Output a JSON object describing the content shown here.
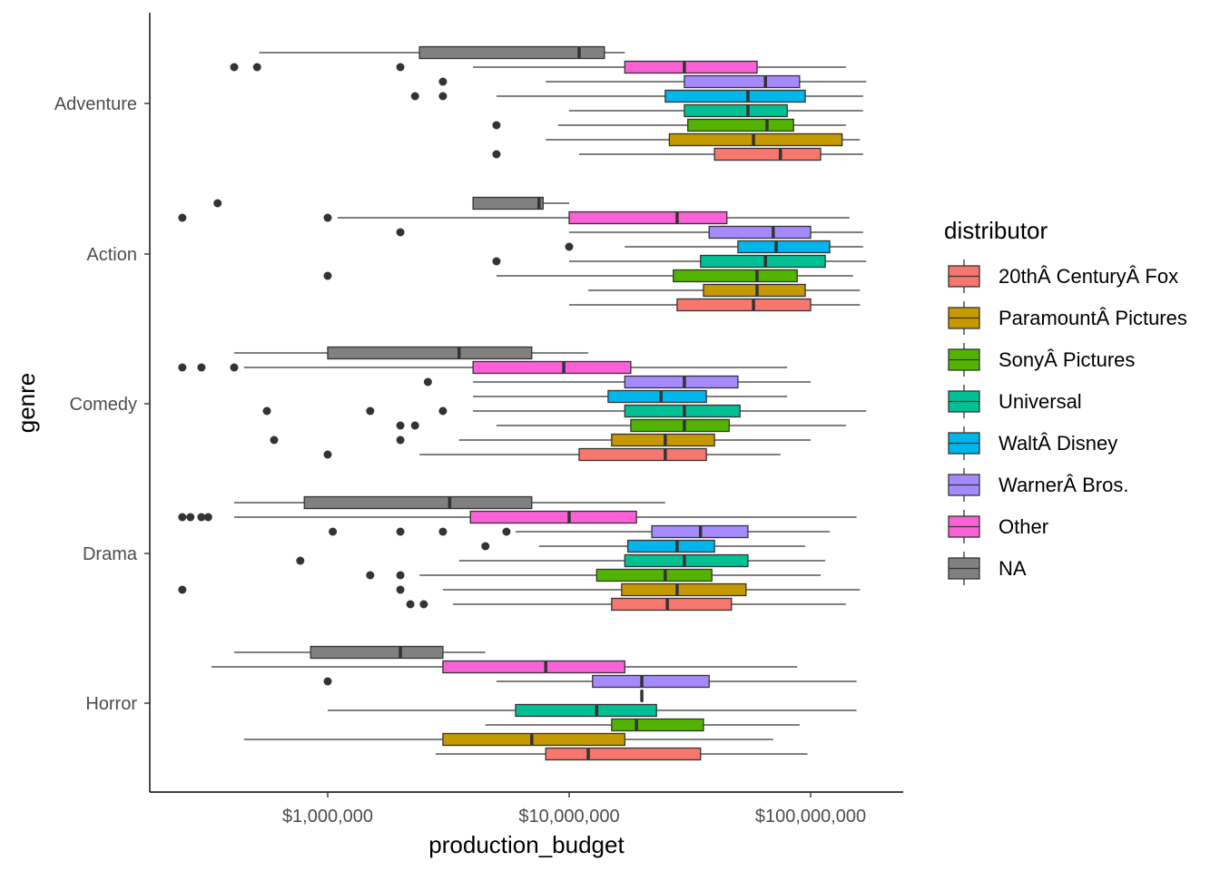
{
  "chart_data": {
    "type": "boxplot",
    "orientation": "horizontal",
    "xlabel": "production_budget",
    "ylabel": "genre",
    "x_scale": "log10",
    "x_range": [
      250000,
      180000000
    ],
    "x_ticks": [
      {
        "value": 1000000,
        "label": "$1,000,000"
      },
      {
        "value": 10000000,
        "label": "$10,000,000"
      },
      {
        "value": 100000000,
        "label": "$100,000,000"
      }
    ],
    "categories": [
      "Adventure",
      "Action",
      "Comedy",
      "Drama",
      "Horror"
    ],
    "legend": {
      "title": "distributor",
      "placement": "right",
      "entries": [
        "20thÂ CenturyÂ Fox",
        "ParamountÂ Pictures",
        "SonyÂ Pictures",
        "Universal",
        "WaltÂ Disney",
        "WarnerÂ Bros.",
        "Other",
        "NA"
      ]
    },
    "series_colors": {
      "20thÂ CenturyÂ Fox": "#F8766D",
      "ParamountÂ Pictures": "#C49A00",
      "SonyÂ Pictures": "#53B400",
      "Universal": "#00C094",
      "WaltÂ Disney": "#00B6EB",
      "WarnerÂ Bros.": "#A58AFF",
      "Other": "#FB61D7",
      "NA": "#808080"
    },
    "boxes": [
      {
        "genre": "Adventure",
        "distributor": "NA",
        "whisker_low": 520000,
        "q1": 2400000,
        "median": 11000000,
        "q3": 14000000,
        "whisker_high": 17000000,
        "outliers": []
      },
      {
        "genre": "Adventure",
        "distributor": "Other",
        "whisker_low": 4000000,
        "q1": 17000000,
        "median": 30000000,
        "q3": 60000000,
        "whisker_high": 140000000,
        "outliers": [
          410000,
          510000,
          2000000
        ]
      },
      {
        "genre": "Adventure",
        "distributor": "WarnerÂ Bros.",
        "whisker_low": 8000000,
        "q1": 30000000,
        "median": 65000000,
        "q3": 90000000,
        "whisker_high": 170000000,
        "outliers": [
          3000000
        ]
      },
      {
        "genre": "Adventure",
        "distributor": "WaltÂ Disney",
        "whisker_low": 5000000,
        "q1": 25000000,
        "median": 55000000,
        "q3": 95000000,
        "whisker_high": 165000000,
        "outliers": [
          2300000,
          3000000
        ]
      },
      {
        "genre": "Adventure",
        "distributor": "Universal",
        "whisker_low": 10000000,
        "q1": 30000000,
        "median": 55000000,
        "q3": 80000000,
        "whisker_high": 165000000,
        "outliers": []
      },
      {
        "genre": "Adventure",
        "distributor": "SonyÂ Pictures",
        "whisker_low": 9000000,
        "q1": 31000000,
        "median": 66000000,
        "q3": 85000000,
        "whisker_high": 140000000,
        "outliers": [
          5000000
        ]
      },
      {
        "genre": "Adventure",
        "distributor": "ParamountÂ Pictures",
        "whisker_low": 8000000,
        "q1": 26000000,
        "median": 58000000,
        "q3": 135000000,
        "whisker_high": 160000000,
        "outliers": []
      },
      {
        "genre": "Adventure",
        "distributor": "20thÂ CenturyÂ Fox",
        "whisker_low": 11000000,
        "q1": 40000000,
        "median": 75000000,
        "q3": 110000000,
        "whisker_high": 165000000,
        "outliers": [
          5000000
        ]
      },
      {
        "genre": "Action",
        "distributor": "NA",
        "whisker_low": 4000000,
        "q1": 4000000,
        "median": 7500000,
        "q3": 7800000,
        "whisker_high": 10000000,
        "outliers": [
          350000
        ]
      },
      {
        "genre": "Action",
        "distributor": "Other",
        "whisker_low": 1100000,
        "q1": 10000000,
        "median": 28000000,
        "q3": 45000000,
        "whisker_high": 145000000,
        "outliers": [
          250000,
          1000000
        ]
      },
      {
        "genre": "Action",
        "distributor": "WarnerÂ Bros.",
        "whisker_low": 10000000,
        "q1": 38000000,
        "median": 70000000,
        "q3": 100000000,
        "whisker_high": 165000000,
        "outliers": [
          2000000
        ]
      },
      {
        "genre": "Action",
        "distributor": "WaltÂ Disney",
        "whisker_low": 17000000,
        "q1": 50000000,
        "median": 72000000,
        "q3": 120000000,
        "whisker_high": 165000000,
        "outliers": [
          10000000
        ]
      },
      {
        "genre": "Action",
        "distributor": "Universal",
        "whisker_low": 10000000,
        "q1": 35000000,
        "median": 65000000,
        "q3": 115000000,
        "whisker_high": 170000000,
        "outliers": [
          5000000
        ]
      },
      {
        "genre": "Action",
        "distributor": "SonyÂ Pictures",
        "whisker_low": 5000000,
        "q1": 27000000,
        "median": 60000000,
        "q3": 88000000,
        "whisker_high": 150000000,
        "outliers": [
          1000000
        ]
      },
      {
        "genre": "Action",
        "distributor": "ParamountÂ Pictures",
        "whisker_low": 12000000,
        "q1": 36000000,
        "median": 60000000,
        "q3": 95000000,
        "whisker_high": 160000000,
        "outliers": []
      },
      {
        "genre": "Action",
        "distributor": "20thÂ CenturyÂ Fox",
        "whisker_low": 10000000,
        "q1": 28000000,
        "median": 58000000,
        "q3": 100000000,
        "whisker_high": 160000000,
        "outliers": []
      },
      {
        "genre": "Comedy",
        "distributor": "NA",
        "whisker_low": 410000,
        "q1": 1000000,
        "median": 3500000,
        "q3": 7000000,
        "whisker_high": 12000000,
        "outliers": []
      },
      {
        "genre": "Comedy",
        "distributor": "Other",
        "whisker_low": 450000,
        "q1": 4000000,
        "median": 9500000,
        "q3": 18000000,
        "whisker_high": 80000000,
        "outliers": [
          250000,
          300000,
          410000
        ]
      },
      {
        "genre": "Comedy",
        "distributor": "WarnerÂ Bros.",
        "whisker_low": 4000000,
        "q1": 17000000,
        "median": 30000000,
        "q3": 50000000,
        "whisker_high": 100000000,
        "outliers": [
          2600000
        ]
      },
      {
        "genre": "Comedy",
        "distributor": "WaltÂ Disney",
        "whisker_low": 4000000,
        "q1": 14500000,
        "median": 24000000,
        "q3": 37000000,
        "whisker_high": 80000000,
        "outliers": []
      },
      {
        "genre": "Comedy",
        "distributor": "Universal",
        "whisker_low": 4000000,
        "q1": 17000000,
        "median": 30000000,
        "q3": 51000000,
        "whisker_high": 170000000,
        "outliers": [
          560000,
          1500000,
          3000000
        ]
      },
      {
        "genre": "Comedy",
        "distributor": "SonyÂ Pictures",
        "whisker_low": 5000000,
        "q1": 18000000,
        "median": 30000000,
        "q3": 46000000,
        "whisker_high": 140000000,
        "outliers": [
          2000000,
          2300000
        ]
      },
      {
        "genre": "Comedy",
        "distributor": "ParamountÂ Pictures",
        "whisker_low": 3500000,
        "q1": 15000000,
        "median": 25000000,
        "q3": 40000000,
        "whisker_high": 100000000,
        "outliers": [
          600000,
          2000000
        ]
      },
      {
        "genre": "Comedy",
        "distributor": "20thÂ CenturyÂ Fox",
        "whisker_low": 2400000,
        "q1": 11000000,
        "median": 25000000,
        "q3": 37000000,
        "whisker_high": 75000000,
        "outliers": [
          1000000
        ]
      },
      {
        "genre": "Drama",
        "distributor": "NA",
        "whisker_low": 410000,
        "q1": 800000,
        "median": 3200000,
        "q3": 7000000,
        "whisker_high": 25000000,
        "outliers": []
      },
      {
        "genre": "Drama",
        "distributor": "Other",
        "whisker_low": 410000,
        "q1": 3900000,
        "median": 10000000,
        "q3": 19000000,
        "whisker_high": 155000000,
        "outliers": [
          250000,
          270000,
          300000,
          320000
        ]
      },
      {
        "genre": "Drama",
        "distributor": "WarnerÂ Bros.",
        "whisker_low": 6000000,
        "q1": 22000000,
        "median": 35000000,
        "q3": 55000000,
        "whisker_high": 120000000,
        "outliers": [
          1050000,
          2000000,
          3000000,
          5500000
        ]
      },
      {
        "genre": "Drama",
        "distributor": "WaltÂ Disney",
        "whisker_low": 7500000,
        "q1": 17500000,
        "median": 28000000,
        "q3": 40000000,
        "whisker_high": 95000000,
        "outliers": [
          4500000
        ]
      },
      {
        "genre": "Drama",
        "distributor": "Universal",
        "whisker_low": 3500000,
        "q1": 17000000,
        "median": 30000000,
        "q3": 55000000,
        "whisker_high": 115000000,
        "outliers": [
          770000
        ]
      },
      {
        "genre": "Drama",
        "distributor": "SonyÂ Pictures",
        "whisker_low": 2400000,
        "q1": 13000000,
        "median": 25000000,
        "q3": 39000000,
        "whisker_high": 110000000,
        "outliers": [
          1500000,
          2000000
        ]
      },
      {
        "genre": "Drama",
        "distributor": "ParamountÂ Pictures",
        "whisker_low": 3000000,
        "q1": 16500000,
        "median": 28000000,
        "q3": 54000000,
        "whisker_high": 160000000,
        "outliers": [
          250000,
          2000000
        ]
      },
      {
        "genre": "Drama",
        "distributor": "20thÂ CenturyÂ Fox",
        "whisker_low": 3300000,
        "q1": 15000000,
        "median": 25500000,
        "q3": 47000000,
        "whisker_high": 140000000,
        "outliers": [
          2200000,
          2500000
        ]
      },
      {
        "genre": "Horror",
        "distributor": "NA",
        "whisker_low": 410000,
        "q1": 850000,
        "median": 2000000,
        "q3": 3000000,
        "whisker_high": 4500000,
        "outliers": []
      },
      {
        "genre": "Horror",
        "distributor": "Other",
        "whisker_low": 330000,
        "q1": 3000000,
        "median": 8000000,
        "q3": 17000000,
        "whisker_high": 88000000,
        "outliers": []
      },
      {
        "genre": "Horror",
        "distributor": "WarnerÂ Bros.",
        "whisker_low": 5000000,
        "q1": 12500000,
        "median": 20000000,
        "q3": 38000000,
        "whisker_high": 155000000,
        "outliers": [
          1000000
        ]
      },
      {
        "genre": "Horror",
        "distributor": "WaltÂ Disney",
        "whisker_low": 20000000,
        "q1": 20000000,
        "median": 20000000,
        "q3": 20000000,
        "whisker_high": 20000000,
        "outliers": []
      },
      {
        "genre": "Horror",
        "distributor": "Universal",
        "whisker_low": 1000000,
        "q1": 6000000,
        "median": 13000000,
        "q3": 23000000,
        "whisker_high": 155000000,
        "outliers": []
      },
      {
        "genre": "Horror",
        "distributor": "SonyÂ Pictures",
        "whisker_low": 4500000,
        "q1": 15000000,
        "median": 19000000,
        "q3": 36000000,
        "whisker_high": 90000000,
        "outliers": []
      },
      {
        "genre": "Horror",
        "distributor": "ParamountÂ Pictures",
        "whisker_low": 450000,
        "q1": 3000000,
        "median": 7000000,
        "q3": 17000000,
        "whisker_high": 70000000,
        "outliers": []
      },
      {
        "genre": "Horror",
        "distributor": "20thÂ CenturyÂ Fox",
        "whisker_low": 2800000,
        "q1": 8000000,
        "median": 12000000,
        "q3": 35000000,
        "whisker_high": 97000000,
        "outliers": []
      }
    ]
  }
}
